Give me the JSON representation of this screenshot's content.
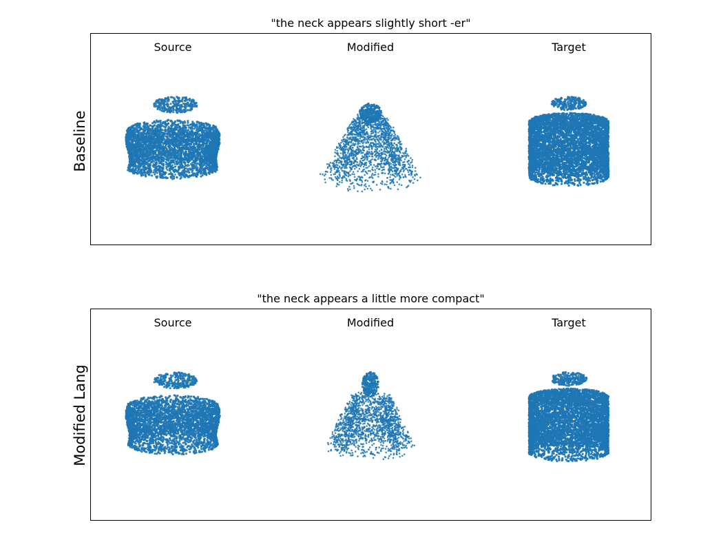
{
  "accent_color": "#1f77b4",
  "rows": [
    {
      "title": "\"the neck appears slightly short -er\"",
      "row_label": "Baseline",
      "columns": [
        {
          "label": "Source",
          "shape": "source"
        },
        {
          "label": "Modified",
          "shape": "modified-baseline"
        },
        {
          "label": "Target",
          "shape": "target"
        }
      ]
    },
    {
      "title": "\"the neck appears a little more compact\"",
      "row_label": "Modified Lang",
      "columns": [
        {
          "label": "Source",
          "shape": "source"
        },
        {
          "label": "Modified",
          "shape": "modified-lang"
        },
        {
          "label": "Target",
          "shape": "target"
        }
      ]
    }
  ]
}
